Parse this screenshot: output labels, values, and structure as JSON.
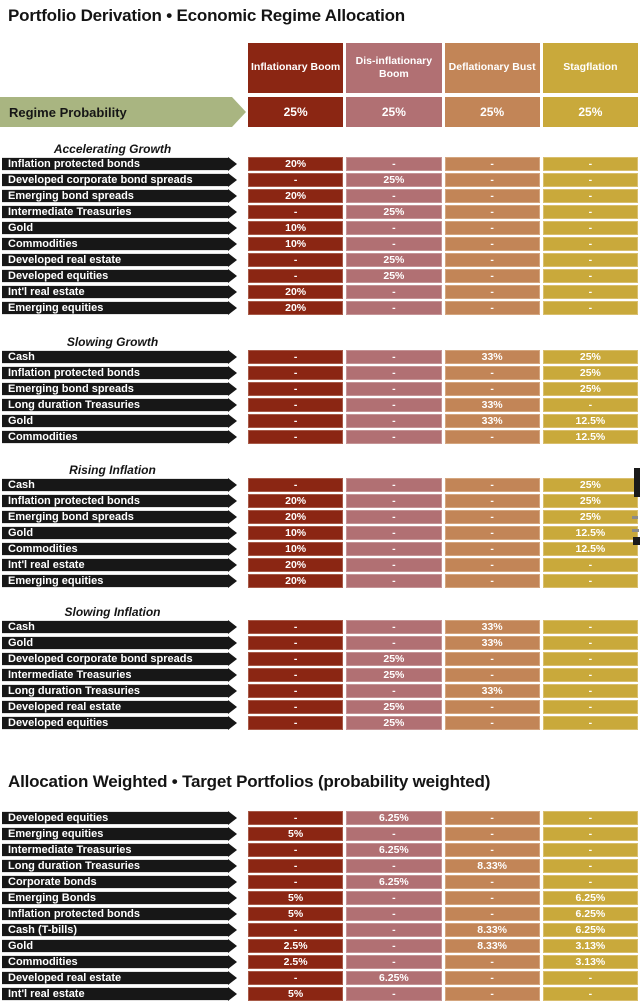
{
  "colors": {
    "column_fills": [
      "#8B2613",
      "#B17073",
      "#C28557",
      "#C9A93B"
    ],
    "column_borders": [
      "#A85B49",
      "#C59597",
      "#D4A67F",
      "#D9BF6E"
    ],
    "regime_arrow_green": "#A9B581",
    "row_arrow_black": "#171717"
  },
  "chart_data": [
    {
      "type": "table",
      "title": "Portfolio Derivation • Economic Regime Allocation",
      "columns": [
        "Inflationary Boom",
        "Dis-inflationary Boom",
        "Deflationary Bust",
        "Stagflation"
      ],
      "regime_probability": {
        "label": "Regime Probability",
        "values": [
          "25%",
          "25%",
          "25%",
          "25%"
        ]
      },
      "sections": [
        {
          "name": "Accelerating Growth",
          "rows": [
            {
              "label": "Inflation protected bonds",
              "values": [
                "20%",
                "-",
                "-",
                "-"
              ]
            },
            {
              "label": "Developed corporate bond spreads",
              "values": [
                "-",
                "25%",
                "-",
                "-"
              ]
            },
            {
              "label": "Emerging bond spreads",
              "values": [
                "20%",
                "-",
                "-",
                "-"
              ]
            },
            {
              "label": "Intermediate Treasuries",
              "values": [
                "-",
                "25%",
                "-",
                "-"
              ]
            },
            {
              "label": "Gold",
              "values": [
                "10%",
                "-",
                "-",
                "-"
              ]
            },
            {
              "label": "Commodities",
              "values": [
                "10%",
                "-",
                "-",
                "-"
              ]
            },
            {
              "label": "Developed real estate",
              "values": [
                "-",
                "25%",
                "-",
                "-"
              ]
            },
            {
              "label": "Developed equities",
              "values": [
                "-",
                "25%",
                "-",
                "-"
              ]
            },
            {
              "label": "Int'l real estate",
              "values": [
                "20%",
                "-",
                "-",
                "-"
              ]
            },
            {
              "label": "Emerging equities",
              "values": [
                "20%",
                "-",
                "-",
                "-"
              ]
            }
          ]
        },
        {
          "name": "Slowing Growth",
          "rows": [
            {
              "label": "Cash",
              "values": [
                "-",
                "-",
                "33%",
                "25%"
              ]
            },
            {
              "label": "Inflation protected bonds",
              "values": [
                "-",
                "-",
                "-",
                "25%"
              ]
            },
            {
              "label": "Emerging bond spreads",
              "values": [
                "-",
                "-",
                "-",
                "25%"
              ]
            },
            {
              "label": "Long duration Treasuries",
              "values": [
                "-",
                "-",
                "33%",
                "-"
              ]
            },
            {
              "label": "Gold",
              "values": [
                "-",
                "-",
                "33%",
                "12.5%"
              ]
            },
            {
              "label": "Commodities",
              "values": [
                "-",
                "-",
                "-",
                "12.5%"
              ]
            }
          ]
        },
        {
          "name": "Rising Inflation",
          "rows": [
            {
              "label": "Cash",
              "values": [
                "-",
                "-",
                "-",
                "25%"
              ]
            },
            {
              "label": "Inflation protected bonds",
              "values": [
                "20%",
                "-",
                "-",
                "25%"
              ]
            },
            {
              "label": "Emerging bond spreads",
              "values": [
                "20%",
                "-",
                "-",
                "25%"
              ]
            },
            {
              "label": "Gold",
              "values": [
                "10%",
                "-",
                "-",
                "12.5%"
              ]
            },
            {
              "label": "Commodities",
              "values": [
                "10%",
                "-",
                "-",
                "12.5%"
              ]
            },
            {
              "label": "Int'l real estate",
              "values": [
                "20%",
                "-",
                "-",
                "-"
              ]
            },
            {
              "label": "Emerging equities",
              "values": [
                "20%",
                "-",
                "-",
                "-"
              ]
            }
          ]
        },
        {
          "name": "Slowing Inflation",
          "rows": [
            {
              "label": "Cash",
              "values": [
                "-",
                "-",
                "33%",
                "-"
              ]
            },
            {
              "label": "Gold",
              "values": [
                "-",
                "-",
                "33%",
                "-"
              ]
            },
            {
              "label": "Developed corporate bond spreads",
              "values": [
                "-",
                "25%",
                "-",
                "-"
              ]
            },
            {
              "label": "Intermediate Treasuries",
              "values": [
                "-",
                "25%",
                "-",
                "-"
              ]
            },
            {
              "label": "Long duration Treasuries",
              "values": [
                "-",
                "-",
                "33%",
                "-"
              ]
            },
            {
              "label": "Developed real estate",
              "values": [
                "-",
                "25%",
                "-",
                "-"
              ]
            },
            {
              "label": "Developed equities",
              "values": [
                "-",
                "25%",
                "-",
                "-"
              ]
            }
          ]
        }
      ]
    },
    {
      "type": "table",
      "title": "Allocation Weighted • Target Portfolios (probability weighted)",
      "rows": [
        {
          "label": "Developed equities",
          "values": [
            "-",
            "6.25%",
            "-",
            "-"
          ]
        },
        {
          "label": "Emerging equities",
          "values": [
            "5%",
            "-",
            "-",
            "-"
          ]
        },
        {
          "label": "Intermediate Treasuries",
          "values": [
            "-",
            "6.25%",
            "-",
            "-"
          ]
        },
        {
          "label": "Long duration Treasuries",
          "values": [
            "-",
            "-",
            "8.33%",
            "-"
          ]
        },
        {
          "label": "Corporate bonds",
          "values": [
            "-",
            "6.25%",
            "-",
            "-"
          ]
        },
        {
          "label": "Emerging Bonds",
          "values": [
            "5%",
            "-",
            "-",
            "6.25%"
          ]
        },
        {
          "label": "Inflation protected bonds",
          "values": [
            "5%",
            "-",
            "-",
            "6.25%"
          ]
        },
        {
          "label": "Cash (T-bills)",
          "values": [
            "-",
            "-",
            "8.33%",
            "6.25%"
          ]
        },
        {
          "label": "Gold",
          "values": [
            "2.5%",
            "-",
            "8.33%",
            "3.13%"
          ]
        },
        {
          "label": "Commodities",
          "values": [
            "2.5%",
            "-",
            "-",
            "3.13%"
          ]
        },
        {
          "label": "Developed real estate",
          "values": [
            "-",
            "6.25%",
            "-",
            "-"
          ]
        },
        {
          "label": "Int'l real estate",
          "values": [
            "5%",
            "-",
            "-",
            "-"
          ]
        }
      ]
    }
  ]
}
